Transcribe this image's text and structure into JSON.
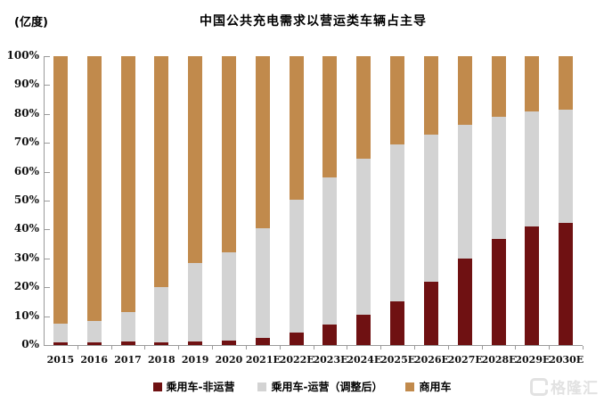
{
  "unit_label": "(亿度)",
  "title": "中国公共充电需求以营运类车辆占主导",
  "watermark": "格隆汇",
  "chart_data": {
    "type": "bar",
    "subtype": "stacked-100-percent-column",
    "title": "中国公共充电需求以营运类车辆占主导",
    "unit_label": "(亿度)",
    "categories": [
      "2015",
      "2016",
      "2017",
      "2018",
      "2019",
      "2020",
      "2021E",
      "2022E",
      "2023E",
      "2024E",
      "2025E",
      "2026E",
      "2027E",
      "2028E",
      "2029E",
      "2030E"
    ],
    "series": [
      {
        "name": "乘用车-非运营",
        "color": "#6f1112",
        "values": [
          0.8,
          0.8,
          1.2,
          1.0,
          1.2,
          1.5,
          2.4,
          4.2,
          7.0,
          10.5,
          15.0,
          22.0,
          29.8,
          36.8,
          41.0,
          42.3
        ]
      },
      {
        "name": "乘用车-运营（调整后）",
        "color": "#d3d3d3",
        "values": [
          6.7,
          7.4,
          10.2,
          19.0,
          27.3,
          30.5,
          38.2,
          46.2,
          51.0,
          53.9,
          54.5,
          51.0,
          46.4,
          42.2,
          40.0,
          39.3
        ]
      },
      {
        "name": "商用车",
        "color": "#c18a4c",
        "values": [
          92.5,
          91.8,
          88.6,
          80.0,
          71.5,
          68.0,
          59.4,
          49.6,
          42.0,
          35.6,
          30.5,
          27.0,
          23.8,
          21.0,
          19.0,
          18.4
        ]
      }
    ],
    "y_axis": {
      "min": 0,
      "max": 100,
      "step": 10,
      "tick_labels": [
        "0%",
        "10%",
        "20%",
        "30%",
        "40%",
        "50%",
        "60%",
        "70%",
        "80%",
        "90%",
        "100%"
      ]
    },
    "legend_position": "bottom",
    "grid": false,
    "axis_color": "#9a9a9a"
  }
}
